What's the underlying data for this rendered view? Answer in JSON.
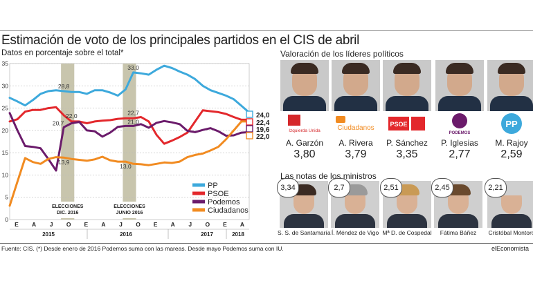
{
  "title": "Estimación de voto de los principales partidos en el CIS de abril",
  "subtitle": "Datos en porcentaje sobre el total*",
  "chart_data": {
    "type": "line",
    "y_ticks": [
      "35",
      "30",
      "25",
      "20",
      "15",
      "10",
      "5",
      "0"
    ],
    "ylim": [
      0,
      35
    ],
    "month_labels": [
      "E",
      "A",
      "J",
      "O",
      "E",
      "A",
      "J",
      "O",
      "E",
      "A",
      "J",
      "O",
      "E",
      "A"
    ],
    "year_labels": [
      "2015",
      "2016",
      "2017",
      "2018"
    ],
    "series": [
      {
        "name": "PP",
        "color": "#3da9dc",
        "values": [
          27.3,
          26.5,
          25.6,
          26.8,
          28.2,
          28.8,
          29.0,
          28.8,
          28.6,
          28.6,
          28.2,
          29.0,
          29.0,
          28.5,
          27.8,
          29.2,
          33.0,
          32.8,
          32.5,
          33.6,
          34.5,
          34.0,
          33.2,
          32.5,
          31.5,
          30.0,
          29.0,
          28.4,
          27.8,
          27.0,
          25.5,
          24.0
        ],
        "end_label": "24,0"
      },
      {
        "name": "PSOE",
        "color": "#e3282c",
        "values": [
          22.0,
          22.5,
          24.2,
          24.6,
          24.6,
          25.0,
          25.2,
          23.4,
          22.0,
          22.0,
          21.6,
          22.0,
          22.2,
          22.3,
          22.6,
          22.7,
          22.7,
          23.0,
          22.0,
          19.0,
          17.0,
          17.7,
          18.5,
          19.5,
          22.0,
          24.5,
          24.3,
          24.1,
          23.7,
          23.0,
          22.4,
          22.4
        ],
        "end_label": "22,4"
      },
      {
        "name": "Podemos",
        "color": "#6b1b6b",
        "values": [
          23.9,
          20.0,
          16.5,
          16.3,
          16.0,
          13.6,
          11.0,
          20.7,
          21.6,
          21.9,
          20.0,
          19.8,
          18.6,
          19.5,
          20.8,
          21.0,
          21.0,
          21.4,
          20.6,
          21.7,
          22.1,
          21.8,
          21.4,
          19.9,
          19.6,
          20.1,
          20.5,
          19.8,
          18.8,
          18.9,
          19.5,
          19.6
        ],
        "end_label": "19,6"
      },
      {
        "name": "Ciudadanos",
        "color": "#f18b21",
        "values": [
          3.1,
          8.5,
          13.8,
          12.9,
          12.5,
          13.6,
          14.0,
          13.9,
          13.6,
          13.4,
          13.2,
          13.5,
          14.1,
          13.3,
          13.0,
          13.0,
          12.5,
          12.4,
          12.2,
          12.5,
          12.8,
          12.7,
          13.0,
          14.0,
          14.5,
          14.8,
          15.5,
          16.3,
          18.0,
          20.0,
          22.0,
          22.0
        ],
        "end_label": "22,0"
      }
    ],
    "annotations": [
      {
        "text": "28,8",
        "series": "PP",
        "index": 7
      },
      {
        "text": "22,0",
        "series": "PSOE",
        "index": 8
      },
      {
        "text": "20,7",
        "series": "Podemos",
        "index": 7
      },
      {
        "text": "13,9",
        "series": "Ciudadanos",
        "index": 7
      },
      {
        "text": "33,0",
        "series": "PP",
        "index": 16
      },
      {
        "text": "22,7",
        "series": "PSOE",
        "index": 16
      },
      {
        "text": "21,0",
        "series": "Podemos",
        "index": 16
      },
      {
        "text": "13,0",
        "series": "Ciudadanos",
        "index": 15
      }
    ],
    "election_bands": [
      {
        "label_line1": "ELECCIONES",
        "label_line2": "DIC. 2016",
        "start_index": 7,
        "end_index": 8
      },
      {
        "label_line1": "ELECCIONES",
        "label_line2": "JUNIO 2016",
        "start_index": 15,
        "end_index": 16
      }
    ],
    "legend_placement": "bottom-right"
  },
  "leaders_title": "Valoración de los líderes políticos",
  "leaders": [
    {
      "name": "A. Garzón",
      "score": "3,80",
      "logo": "iu-logo",
      "logo_text": "Izquierda Unida",
      "color": "#d5282b"
    },
    {
      "name": "A. Rivera",
      "score": "3,79",
      "logo": "cs-logo",
      "logo_text": "Ciudadanos",
      "color": "#f18b21"
    },
    {
      "name": "P. Sánchez",
      "score": "3,35",
      "logo": "psoe-logo",
      "logo_text": "PSOE",
      "color": "#e3282c"
    },
    {
      "name": "P. Iglesias",
      "score": "2,77",
      "logo": "podemos-logo",
      "logo_text": "PODEMOS",
      "color": "#6b1b6b"
    },
    {
      "name": "M. Rajoy",
      "score": "2,59",
      "logo": "pp-logo",
      "logo_text": "PP",
      "color": "#3da9dc"
    }
  ],
  "ministers_title": "Las notas de los ministros",
  "ministers": [
    {
      "name": "S. S. de Santamaría",
      "score": "3,34"
    },
    {
      "name": "Í. Méndez de Vigo",
      "score": "2,7"
    },
    {
      "name": "Mª D. de Cospedal",
      "score": "2,51"
    },
    {
      "name": "Fátima Báñez",
      "score": "2,45"
    },
    {
      "name": "Cristóbal Montoro",
      "score": "2,21"
    }
  ],
  "source": "Fuente: CIS. (*) Desde enero de 2016 Podemos suma con las mareas. Desde mayo Podemos suma con IU.",
  "brand": "elEconomista"
}
